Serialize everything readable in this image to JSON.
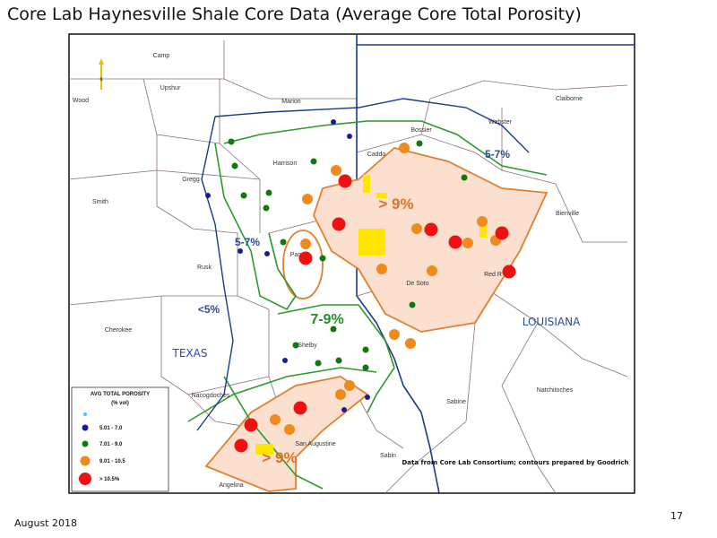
{
  "title": "Core Lab Haynesville Shale Core Data (Average Core Total Porosity)",
  "map": {
    "counties": [
      "Camp",
      "Wood",
      "Upshur",
      "Marion",
      "Harrison",
      "Gregg",
      "Smith",
      "Rusk",
      "Cherokee",
      "Pan",
      "Shelby",
      "Nacogdoches",
      "San Augustine",
      "Angelina",
      "Sabine",
      "Sabin",
      "Caddo",
      "Bossier",
      "Webster",
      "Claiborne",
      "Bienville",
      "De Soto",
      "Red R",
      "Natchitoches"
    ],
    "states": [
      "TEXAS",
      "LOUISIANA"
    ],
    "contour_labels": [
      "5-7%",
      "5-7%",
      "<5%",
      "7-9%",
      "> 9%",
      "> 9%"
    ],
    "north_label": "N"
  },
  "legend": {
    "title": "AVG TOTAL POROSITY",
    "subtitle": "(% vol)",
    "items": [
      {
        "label": "",
        "color": "#33ccff"
      },
      {
        "label": "5.01 - 7.0",
        "color": "#1a1aa0"
      },
      {
        "label": "7.01 - 9.0",
        "color": "#117711"
      },
      {
        "label": "9.01 - 10.5",
        "color": "#f08a1c"
      },
      {
        "label": "> 10.5%",
        "color": "#ee1111"
      }
    ]
  },
  "credit": "Data from Core Lab Consortium; contours prepared by Goodrich",
  "footer": {
    "date": "August 2018",
    "page": "17"
  }
}
